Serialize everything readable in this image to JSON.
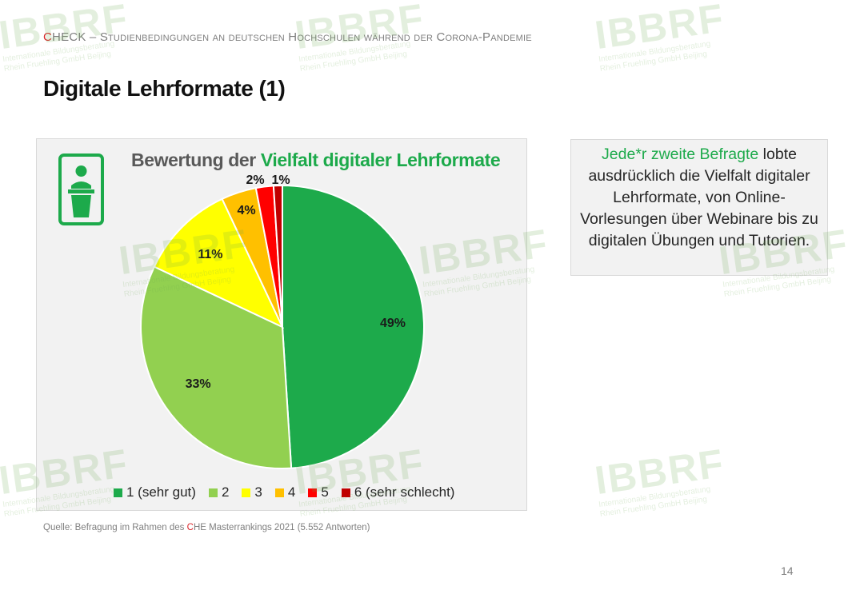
{
  "header": {
    "c": "C",
    "che_rest": "HECK",
    "dash": " – ",
    "subtitle": "Studienbedingungen an deutschen Hochschulen während der Corona-Pandemie"
  },
  "slide_title": "Digitale Lehrformate (1)",
  "chart_title_prefix": "Bewertung der ",
  "chart_title_highlight": "Vielfalt digitaler Lehrformate",
  "chart_data": {
    "type": "pie",
    "title": "Bewertung der Vielfalt digitaler Lehrformate",
    "categories": [
      "1 (sehr gut)",
      "2",
      "3",
      "4",
      "5",
      "6 (sehr schlecht)"
    ],
    "values": [
      49,
      33,
      11,
      4,
      2,
      1
    ],
    "labels": [
      "49%",
      "33%",
      "11%",
      "4%",
      "2%",
      "1%"
    ],
    "colors": [
      "#1daa4b",
      "#92d050",
      "#ffff00",
      "#ffc000",
      "#ff0000",
      "#c00000"
    ],
    "legend_position": "bottom"
  },
  "note": {
    "highlight": "Jede*r zweite Befragte",
    "text": " lobte ausdrücklich die Vielfalt digitaler Lehrformate, von Online-Vorlesungen über Webinare bis zu digitalen Übungen und Tutorien."
  },
  "source": {
    "prefix": "Quelle: Befragung im Rahmen des ",
    "c": "C",
    "suffix": "HE Masterrankings 2021 (5.552 Antworten)"
  },
  "page_number": "14",
  "watermark": {
    "big": "IBBRF",
    "line1": "Internationale Bildungsberatung",
    "line2": "Rhein Fruehling GmbH Beijing"
  }
}
